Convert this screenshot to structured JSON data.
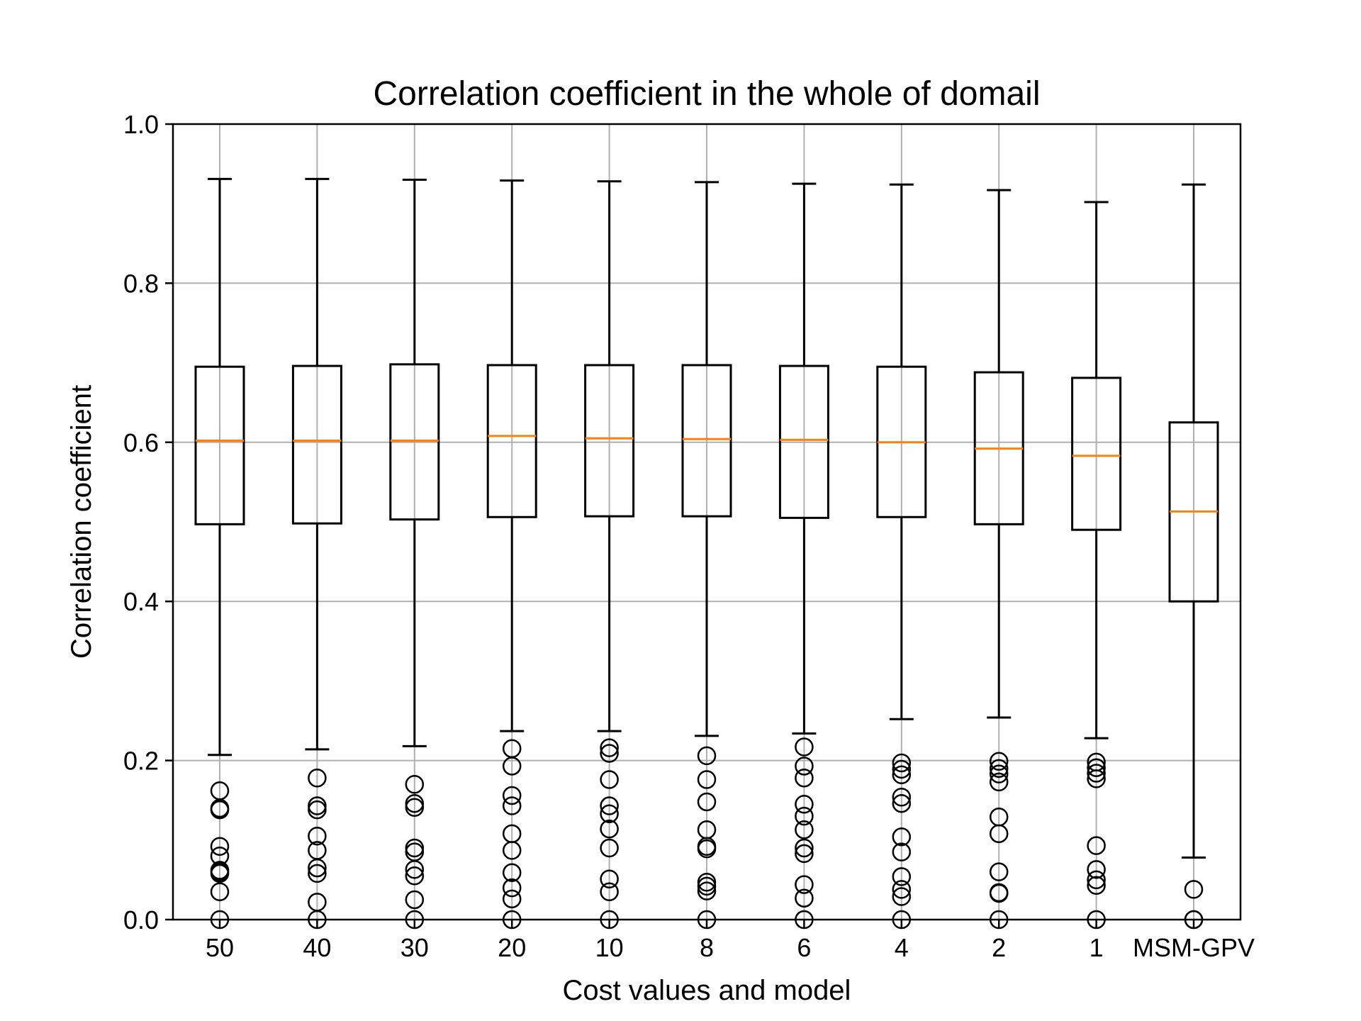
{
  "chart_data": {
    "type": "box",
    "title": "Correlation coefficient in the whole of domail",
    "xlabel": "Cost values and model",
    "ylabel": "Correlation coefficient",
    "ylim": [
      0.0,
      1.0
    ],
    "yticks": [
      "0.0",
      "0.2",
      "0.4",
      "0.6",
      "0.8",
      "1.0"
    ],
    "grid": true,
    "colors": {
      "box": "#000000",
      "median": "#ff7f0e",
      "grid": "#b0b0b0",
      "flier": "#000000"
    },
    "categories": [
      "50",
      "40",
      "30",
      "20",
      "10",
      "8",
      "6",
      "4",
      "2",
      "1",
      "MSM-GPV"
    ],
    "boxes": [
      {
        "category": "50",
        "whislo": 0.207,
        "q1": 0.497,
        "med": 0.602,
        "q3": 0.695,
        "whishi": 0.931,
        "fliers": [
          0.162,
          0.14,
          0.138,
          0.092,
          0.08,
          0.062,
          0.06,
          0.058,
          0.035,
          0.0
        ]
      },
      {
        "category": "40",
        "whislo": 0.214,
        "q1": 0.498,
        "med": 0.602,
        "q3": 0.696,
        "whishi": 0.931,
        "fliers": [
          0.178,
          0.143,
          0.138,
          0.105,
          0.087,
          0.065,
          0.058,
          0.022,
          0.0
        ]
      },
      {
        "category": "30",
        "whislo": 0.218,
        "q1": 0.503,
        "med": 0.602,
        "q3": 0.698,
        "whishi": 0.93,
        "fliers": [
          0.17,
          0.146,
          0.141,
          0.09,
          0.085,
          0.063,
          0.055,
          0.025,
          0.0
        ]
      },
      {
        "category": "20",
        "whislo": 0.237,
        "q1": 0.506,
        "med": 0.608,
        "q3": 0.697,
        "whishi": 0.929,
        "fliers": [
          0.215,
          0.193,
          0.156,
          0.143,
          0.108,
          0.087,
          0.059,
          0.04,
          0.026,
          0.0
        ]
      },
      {
        "category": "10",
        "whislo": 0.237,
        "q1": 0.507,
        "med": 0.605,
        "q3": 0.697,
        "whishi": 0.928,
        "fliers": [
          0.216,
          0.209,
          0.176,
          0.143,
          0.133,
          0.114,
          0.09,
          0.051,
          0.035,
          0.0
        ]
      },
      {
        "category": "8",
        "whislo": 0.231,
        "q1": 0.507,
        "med": 0.604,
        "q3": 0.697,
        "whishi": 0.927,
        "fliers": [
          0.206,
          0.176,
          0.148,
          0.113,
          0.092,
          0.089,
          0.047,
          0.042,
          0.036,
          0.0
        ]
      },
      {
        "category": "6",
        "whislo": 0.234,
        "q1": 0.505,
        "med": 0.603,
        "q3": 0.696,
        "whishi": 0.925,
        "fliers": [
          0.217,
          0.193,
          0.178,
          0.145,
          0.13,
          0.113,
          0.09,
          0.083,
          0.044,
          0.027,
          0.0
        ]
      },
      {
        "category": "4",
        "whislo": 0.252,
        "q1": 0.506,
        "med": 0.6,
        "q3": 0.695,
        "whishi": 0.924,
        "fliers": [
          0.197,
          0.189,
          0.182,
          0.154,
          0.146,
          0.104,
          0.085,
          0.054,
          0.038,
          0.029,
          0.0
        ]
      },
      {
        "category": "2",
        "whislo": 0.254,
        "q1": 0.497,
        "med": 0.592,
        "q3": 0.688,
        "whishi": 0.917,
        "fliers": [
          0.199,
          0.19,
          0.183,
          0.173,
          0.129,
          0.108,
          0.06,
          0.034,
          0.033,
          0.0
        ]
      },
      {
        "category": "1",
        "whislo": 0.228,
        "q1": 0.49,
        "med": 0.583,
        "q3": 0.681,
        "whishi": 0.902,
        "fliers": [
          0.198,
          0.191,
          0.184,
          0.177,
          0.093,
          0.063,
          0.05,
          0.043,
          0.0
        ]
      },
      {
        "category": "MSM-GPV",
        "whislo": 0.078,
        "q1": 0.4,
        "med": 0.513,
        "q3": 0.625,
        "whishi": 0.924,
        "fliers": [
          0.038,
          0.0,
          0.0
        ]
      }
    ]
  }
}
